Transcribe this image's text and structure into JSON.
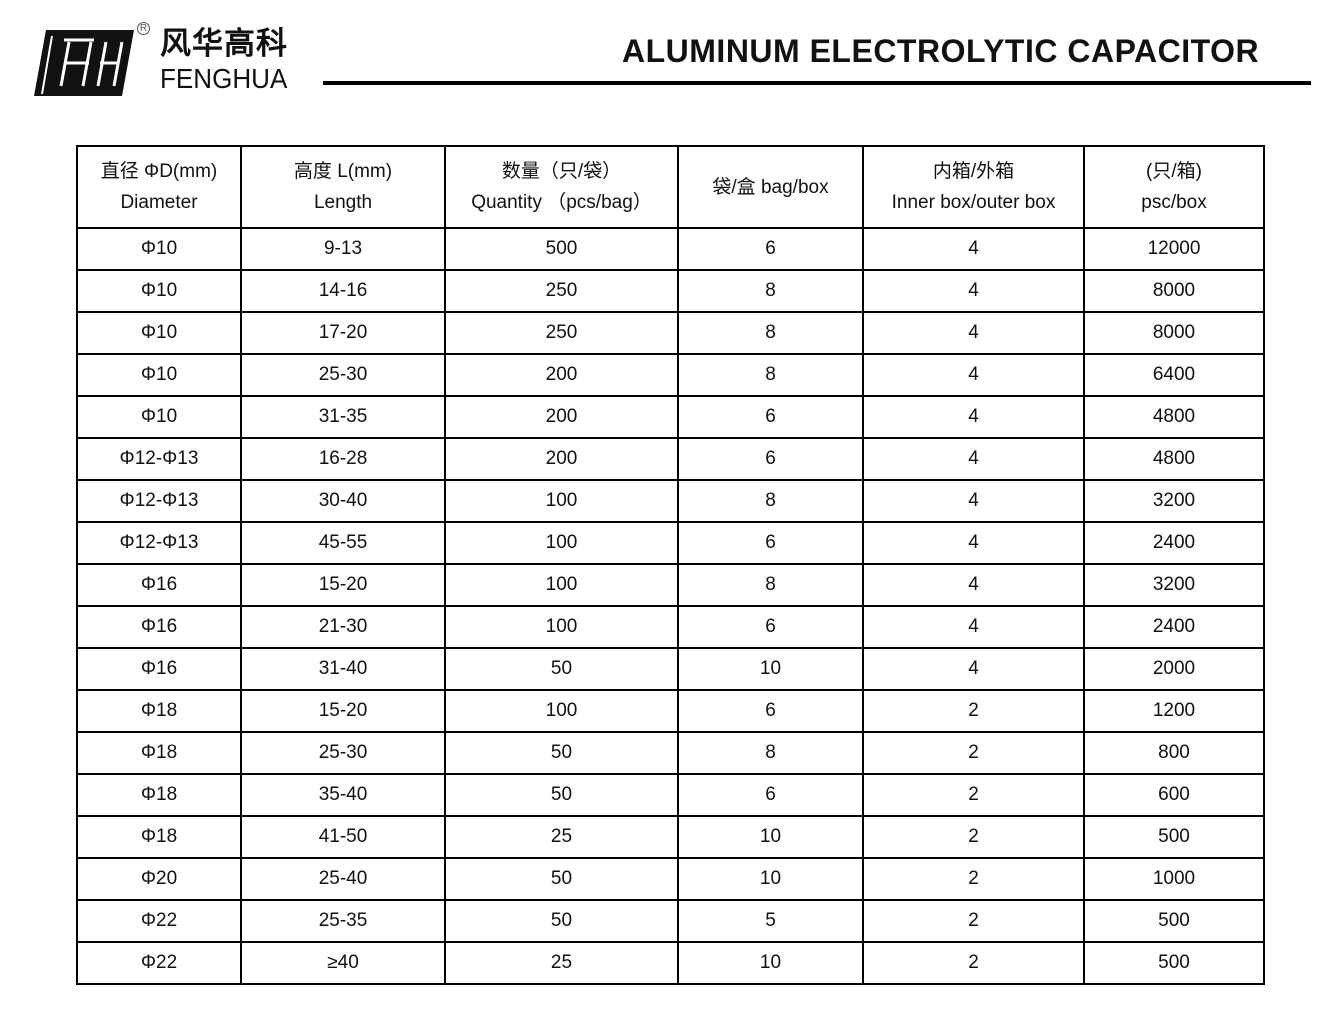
{
  "brand": {
    "cn": "风华高科",
    "en": "FENGHUA",
    "registered": "R"
  },
  "title": "ALUMINUM ELECTROLYTIC CAPACITOR",
  "table": {
    "headers": [
      {
        "l1": "直径 ΦD(mm)",
        "l2": "Diameter"
      },
      {
        "l1": "高度 L(mm)",
        "l2": "Length"
      },
      {
        "l1": "数量（只/袋）",
        "l2": "Quantity （pcs/bag）"
      },
      {
        "l1": "袋/盒 bag/box",
        "l2": ""
      },
      {
        "l1": "内箱/外箱",
        "l2": "Inner box/outer box"
      },
      {
        "l1": "(只/箱)",
        "l2": "psc/box"
      }
    ],
    "rows": [
      [
        "Φ10",
        "9-13",
        "500",
        "6",
        "4",
        "12000"
      ],
      [
        "Φ10",
        "14-16",
        "250",
        "8",
        "4",
        "8000"
      ],
      [
        "Φ10",
        "17-20",
        "250",
        "8",
        "4",
        "8000"
      ],
      [
        "Φ10",
        "25-30",
        "200",
        "8",
        "4",
        "6400"
      ],
      [
        "Φ10",
        "31-35",
        "200",
        "6",
        "4",
        "4800"
      ],
      [
        "Φ12-Φ13",
        "16-28",
        "200",
        "6",
        "4",
        "4800"
      ],
      [
        "Φ12-Φ13",
        "30-40",
        "100",
        "8",
        "4",
        "3200"
      ],
      [
        "Φ12-Φ13",
        "45-55",
        "100",
        "6",
        "4",
        "2400"
      ],
      [
        "Φ16",
        "15-20",
        "100",
        "8",
        "4",
        "3200"
      ],
      [
        "Φ16",
        "21-30",
        "100",
        "6",
        "4",
        "2400"
      ],
      [
        "Φ16",
        "31-40",
        "50",
        "10",
        "4",
        "2000"
      ],
      [
        "Φ18",
        "15-20",
        "100",
        "6",
        "2",
        "1200"
      ],
      [
        "Φ18",
        "25-30",
        "50",
        "8",
        "2",
        "800"
      ],
      [
        "Φ18",
        "35-40",
        "50",
        "6",
        "2",
        "600"
      ],
      [
        "Φ18",
        "41-50",
        "25",
        "10",
        "2",
        "500"
      ],
      [
        "Φ20",
        "25-40",
        "50",
        "10",
        "2",
        "1000"
      ],
      [
        "Φ22",
        "25-35",
        "50",
        "5",
        "2",
        "500"
      ],
      [
        "Φ22",
        "≥40",
        "25",
        "10",
        "2",
        "500"
      ]
    ]
  }
}
